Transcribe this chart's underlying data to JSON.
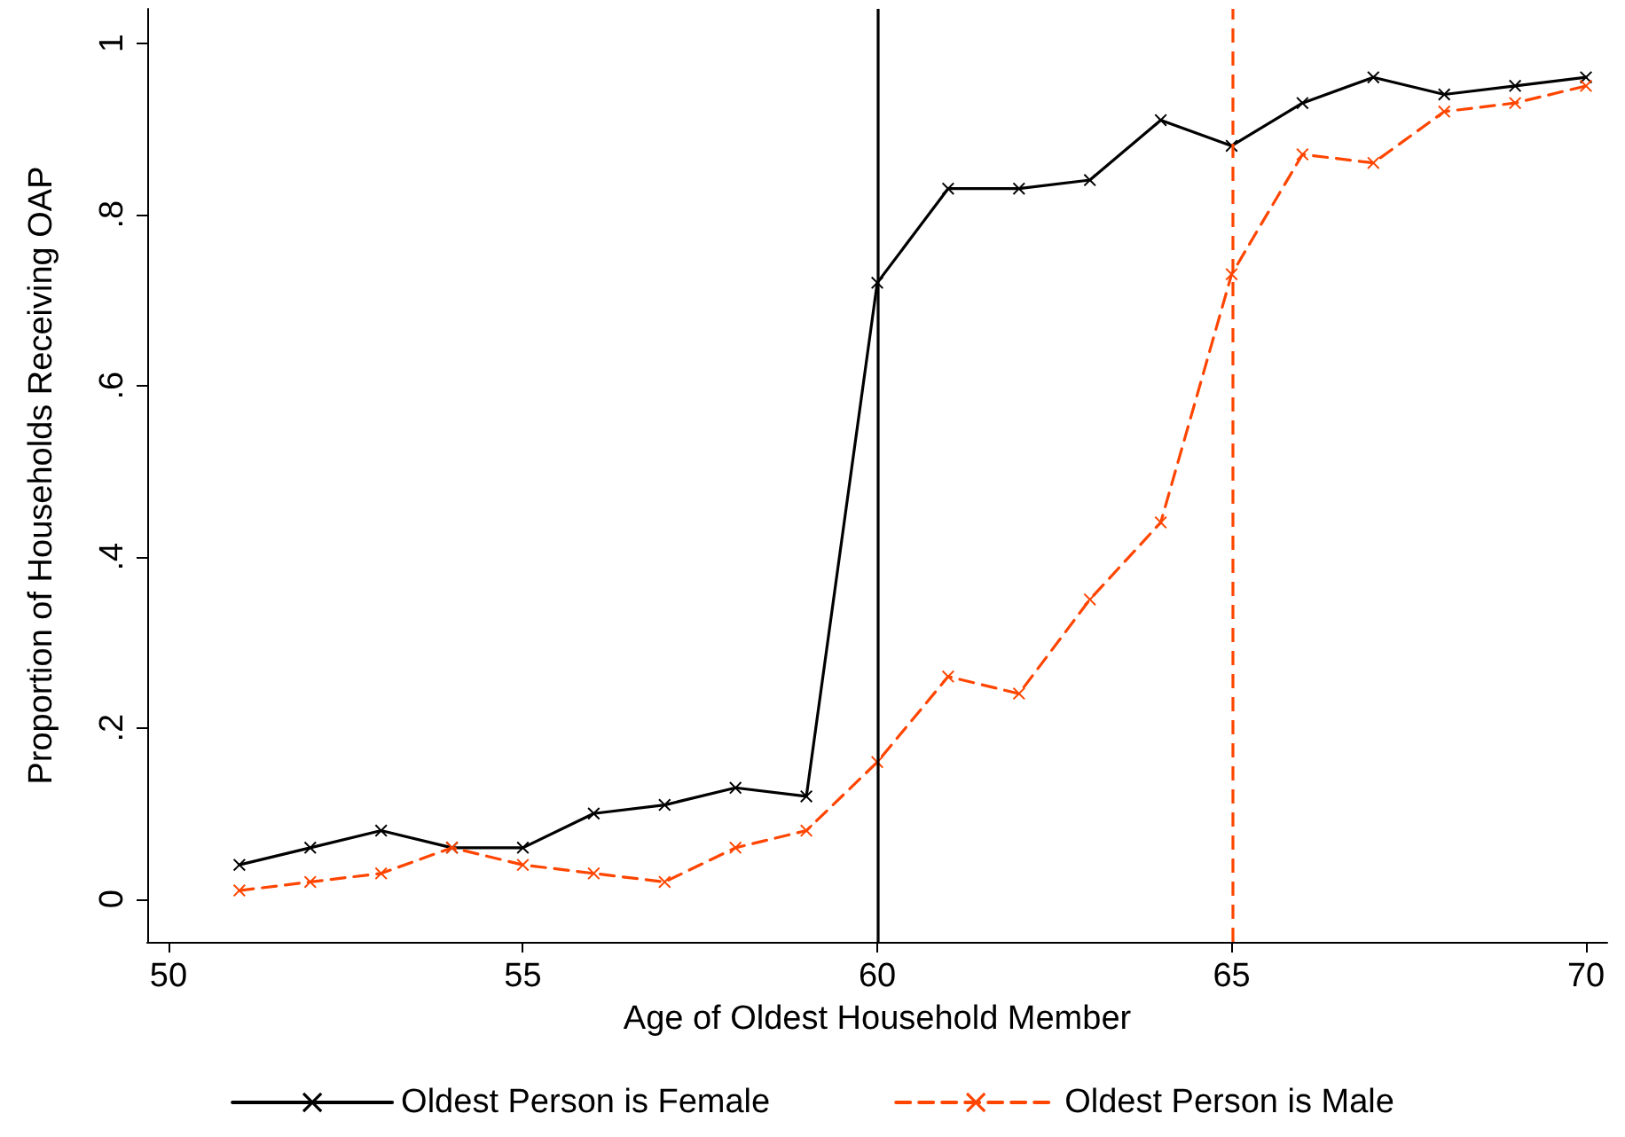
{
  "chart_data": {
    "type": "line",
    "xlabel": "Age of Oldest Household Member",
    "ylabel": "Proportion of Households Receiving OAP",
    "x": [
      51,
      52,
      53,
      54,
      55,
      56,
      57,
      58,
      59,
      60,
      61,
      62,
      63,
      64,
      65,
      66,
      67,
      68,
      69,
      70
    ],
    "series": [
      {
        "name": "Oldest Person is Female",
        "color": "#000000",
        "line_style": "solid",
        "values": [
          0.04,
          0.06,
          0.08,
          0.06,
          0.06,
          0.1,
          0.11,
          0.13,
          0.12,
          0.72,
          0.83,
          0.83,
          0.84,
          0.91,
          0.88,
          0.93,
          0.96,
          0.94,
          0.95,
          0.96
        ]
      },
      {
        "name": "Oldest Person is Male",
        "color": "#ff4500",
        "line_style": "dashed",
        "values": [
          0.01,
          0.02,
          0.03,
          0.06,
          0.04,
          0.03,
          0.02,
          0.06,
          0.08,
          0.16,
          0.26,
          0.24,
          0.35,
          0.44,
          0.73,
          0.87,
          0.86,
          0.92,
          0.93,
          0.95
        ]
      }
    ],
    "xlim": [
      49.7,
      70.3
    ],
    "xticks": [
      50,
      55,
      60,
      65,
      70
    ],
    "ylim": [
      -0.05,
      1.04
    ],
    "yticks": [
      {
        "value": 0,
        "label": "0"
      },
      {
        "value": 0.2,
        "label": ".2"
      },
      {
        "value": 0.4,
        "label": ".4"
      },
      {
        "value": 0.6,
        "label": ".6"
      },
      {
        "value": 0.8,
        "label": ".8"
      },
      {
        "value": 1,
        "label": "1"
      }
    ],
    "ref_lines": [
      {
        "axis": "x",
        "value": 60,
        "color": "#000000",
        "line_style": "solid"
      },
      {
        "axis": "x",
        "value": 65,
        "color": "#ff4500",
        "line_style": "dashed"
      }
    ],
    "grid": false,
    "legend": "bottom",
    "marker": "cross"
  }
}
